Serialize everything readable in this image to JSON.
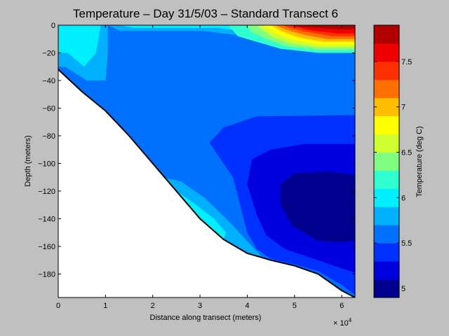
{
  "chart_data": {
    "type": "contour",
    "title": "Temperature – Day 31/5/03 – Standard Transect 6",
    "xlabel": "Distance along transect (meters)",
    "ylabel": "Depth (meters)",
    "x_exponent_label": "× 10",
    "x_exponent_power": "4",
    "xlim": [
      0,
      62800
    ],
    "ylim": [
      -197,
      0
    ],
    "x_ticks": [
      {
        "value": 0,
        "label": "0"
      },
      {
        "value": 10000,
        "label": "1"
      },
      {
        "value": 20000,
        "label": "2"
      },
      {
        "value": 30000,
        "label": "3"
      },
      {
        "value": 40000,
        "label": "4"
      },
      {
        "value": 50000,
        "label": "5"
      },
      {
        "value": 60000,
        "label": "6"
      }
    ],
    "y_ticks": [
      {
        "value": 0,
        "label": "0"
      },
      {
        "value": -20,
        "label": "−20"
      },
      {
        "value": -40,
        "label": "−40"
      },
      {
        "value": -60,
        "label": "−60"
      },
      {
        "value": -80,
        "label": "−80"
      },
      {
        "value": -100,
        "label": "−100"
      },
      {
        "value": -120,
        "label": "−120"
      },
      {
        "value": -140,
        "label": "−140"
      },
      {
        "value": -160,
        "label": "−160"
      },
      {
        "value": -180,
        "label": "−180"
      }
    ],
    "colorbar": {
      "label": "Temperature (deg C)",
      "range": [
        4.9,
        7.9
      ],
      "ticks": [
        {
          "value": 5,
          "label": "5"
        },
        {
          "value": 5.5,
          "label": "5.5"
        },
        {
          "value": 6,
          "label": "6"
        },
        {
          "value": 6.5,
          "label": "6.5"
        },
        {
          "value": 7,
          "label": "7"
        },
        {
          "value": 7.5,
          "label": "7.5"
        }
      ],
      "levels": [
        {
          "lo": 4.9,
          "hi": 5.1,
          "color": "#00008f"
        },
        {
          "lo": 5.1,
          "hi": 5.3,
          "color": "#0000df"
        },
        {
          "lo": 5.3,
          "hi": 5.5,
          "color": "#0030ff"
        },
        {
          "lo": 5.5,
          "hi": 5.7,
          "color": "#0070ff"
        },
        {
          "lo": 5.7,
          "hi": 5.9,
          "color": "#00b0ff"
        },
        {
          "lo": 5.9,
          "hi": 6.1,
          "color": "#00efff"
        },
        {
          "lo": 6.1,
          "hi": 6.3,
          "color": "#30ffcf"
        },
        {
          "lo": 6.3,
          "hi": 6.5,
          "color": "#80ff80"
        },
        {
          "lo": 6.5,
          "hi": 6.7,
          "color": "#cfff30"
        },
        {
          "lo": 6.7,
          "hi": 6.9,
          "color": "#ffff00"
        },
        {
          "lo": 6.9,
          "hi": 7.1,
          "color": "#ffbf00"
        },
        {
          "lo": 7.1,
          "hi": 7.3,
          "color": "#ff7000"
        },
        {
          "lo": 7.3,
          "hi": 7.5,
          "color": "#ff3000"
        },
        {
          "lo": 7.5,
          "hi": 7.7,
          "color": "#ef0000"
        },
        {
          "lo": 7.7,
          "hi": 7.9,
          "color": "#b00000"
        }
      ]
    },
    "seabed": [
      {
        "x": 0,
        "depth": -32
      },
      {
        "x": 5000,
        "depth": -48
      },
      {
        "x": 10000,
        "depth": -62
      },
      {
        "x": 15000,
        "depth": -80
      },
      {
        "x": 20000,
        "depth": -100
      },
      {
        "x": 25000,
        "depth": -120
      },
      {
        "x": 30000,
        "depth": -140
      },
      {
        "x": 35000,
        "depth": -155
      },
      {
        "x": 40000,
        "depth": -165
      },
      {
        "x": 45000,
        "depth": -170
      },
      {
        "x": 50000,
        "depth": -174
      },
      {
        "x": 55000,
        "depth": -180
      },
      {
        "x": 60000,
        "depth": -192
      },
      {
        "x": 62800,
        "depth": -197
      }
    ],
    "bands": [
      {
        "t": 5.6,
        "points": [
          [
            0,
            0
          ],
          [
            62800,
            0
          ],
          [
            62800,
            -197
          ],
          [
            60000,
            -192
          ],
          [
            55000,
            -180
          ],
          [
            50000,
            -174
          ],
          [
            45000,
            -170
          ],
          [
            40000,
            -165
          ],
          [
            35000,
            -155
          ],
          [
            30000,
            -140
          ],
          [
            25000,
            -120
          ],
          [
            20000,
            -100
          ],
          [
            15000,
            -80
          ],
          [
            10000,
            -62
          ],
          [
            5000,
            -48
          ],
          [
            0,
            -32
          ]
        ]
      },
      {
        "t": 5.8,
        "points": [
          [
            0,
            0
          ],
          [
            62800,
            0
          ],
          [
            62800,
            -8
          ],
          [
            40000,
            -8
          ],
          [
            30000,
            -4
          ],
          [
            13000,
            -4
          ],
          [
            10500,
            0
          ],
          [
            10500,
            -20
          ],
          [
            10000,
            -40
          ],
          [
            6000,
            -40
          ],
          [
            1500,
            -30
          ],
          [
            0,
            -30
          ]
        ]
      },
      {
        "t": 6.0,
        "points": [
          [
            0,
            0
          ],
          [
            62800,
            0
          ],
          [
            62800,
            -6
          ],
          [
            40000,
            -5
          ],
          [
            34000,
            -2
          ],
          [
            16000,
            -2
          ],
          [
            13000,
            0
          ],
          [
            9000,
            0
          ],
          [
            8000,
            -20
          ],
          [
            5500,
            -30
          ],
          [
            2000,
            -20
          ],
          [
            0,
            -20
          ]
        ]
      },
      {
        "t": 6.2,
        "points": [
          [
            40000,
            0
          ],
          [
            62800,
            0
          ],
          [
            62800,
            -20
          ],
          [
            55000,
            -20
          ],
          [
            47000,
            -17
          ],
          [
            42000,
            -12
          ],
          [
            38000,
            -8
          ],
          [
            36000,
            0
          ]
        ]
      },
      {
        "t": 6.4,
        "points": [
          [
            42000,
            0
          ],
          [
            62800,
            0
          ],
          [
            62800,
            -18
          ],
          [
            55000,
            -18
          ],
          [
            48000,
            -15
          ],
          [
            44000,
            -10
          ],
          [
            41000,
            -5
          ],
          [
            40000,
            0
          ]
        ]
      },
      {
        "t": 6.6,
        "points": [
          [
            43000,
            0
          ],
          [
            62800,
            0
          ],
          [
            62800,
            -16
          ],
          [
            55000,
            -16
          ],
          [
            49000,
            -13
          ],
          [
            45000,
            -8
          ],
          [
            42000,
            0
          ]
        ]
      },
      {
        "t": 6.8,
        "points": [
          [
            44000,
            0
          ],
          [
            62800,
            0
          ],
          [
            62800,
            -14
          ],
          [
            55000,
            -14
          ],
          [
            50000,
            -11
          ],
          [
            46000,
            -6
          ],
          [
            43500,
            0
          ]
        ]
      },
      {
        "t": 7.0,
        "points": [
          [
            45000,
            0
          ],
          [
            62800,
            0
          ],
          [
            62800,
            -12
          ],
          [
            56000,
            -12
          ],
          [
            51000,
            -9
          ],
          [
            47000,
            -4
          ],
          [
            45000,
            0
          ]
        ]
      },
      {
        "t": 7.2,
        "points": [
          [
            46000,
            0
          ],
          [
            62800,
            0
          ],
          [
            62800,
            -10
          ],
          [
            57000,
            -10
          ],
          [
            52000,
            -7
          ],
          [
            48000,
            -3
          ],
          [
            46000,
            0
          ]
        ]
      },
      {
        "t": 7.4,
        "points": [
          [
            47000,
            0
          ],
          [
            62800,
            0
          ],
          [
            62800,
            -8
          ],
          [
            58000,
            -8
          ],
          [
            53000,
            -5
          ],
          [
            49000,
            -2
          ],
          [
            47500,
            0
          ]
        ]
      },
      {
        "t": 7.6,
        "points": [
          [
            47500,
            0
          ],
          [
            62800,
            0
          ],
          [
            62800,
            -6
          ],
          [
            59000,
            -6
          ],
          [
            54000,
            -4
          ],
          [
            50000,
            -1
          ],
          [
            48500,
            0
          ]
        ]
      },
      {
        "t": 7.8,
        "points": [
          [
            48000,
            0
          ],
          [
            62800,
            0
          ],
          [
            62800,
            -3
          ],
          [
            60000,
            -3
          ],
          [
            55000,
            -2
          ],
          [
            51000,
            -1
          ],
          [
            49000,
            0
          ]
        ]
      },
      {
        "t": 5.8,
        "points": [
          [
            22000,
            -110
          ],
          [
            26000,
            -113
          ],
          [
            31000,
            -125
          ],
          [
            37000,
            -145
          ],
          [
            41000,
            -160
          ],
          [
            43000,
            -167
          ],
          [
            40000,
            -165
          ],
          [
            35000,
            -155
          ],
          [
            30000,
            -140
          ],
          [
            25000,
            -120
          ],
          [
            22500,
            -110
          ]
        ]
      },
      {
        "t": 6.0,
        "points": [
          [
            25000,
            -120
          ],
          [
            28000,
            -127
          ],
          [
            33000,
            -140
          ],
          [
            35500,
            -150
          ],
          [
            35000,
            -155
          ],
          [
            30000,
            -140
          ],
          [
            26000,
            -125
          ]
        ]
      },
      {
        "t": 5.4,
        "points": [
          [
            62800,
            -65
          ],
          [
            42000,
            -66
          ],
          [
            35000,
            -74
          ],
          [
            32000,
            -85
          ],
          [
            37000,
            -110
          ],
          [
            40000,
            -150
          ],
          [
            42000,
            -162
          ],
          [
            45000,
            -169
          ],
          [
            50000,
            -173
          ],
          [
            55000,
            -178
          ],
          [
            60000,
            -188
          ],
          [
            62800,
            -195
          ]
        ]
      },
      {
        "t": 5.2,
        "points": [
          [
            62800,
            -86
          ],
          [
            52000,
            -86
          ],
          [
            45000,
            -90
          ],
          [
            41000,
            -97
          ],
          [
            40000,
            -115
          ],
          [
            42000,
            -137
          ],
          [
            44000,
            -152
          ],
          [
            48000,
            -162
          ],
          [
            55000,
            -170
          ],
          [
            60000,
            -176
          ],
          [
            62800,
            -179
          ]
        ]
      },
      {
        "t": 5.0,
        "points": [
          [
            62800,
            -108
          ],
          [
            57000,
            -106
          ],
          [
            50000,
            -107
          ],
          [
            47000,
            -115
          ],
          [
            47000,
            -130
          ],
          [
            49500,
            -145
          ],
          [
            55000,
            -156
          ],
          [
            60000,
            -157
          ],
          [
            62800,
            -156
          ]
        ]
      }
    ]
  }
}
